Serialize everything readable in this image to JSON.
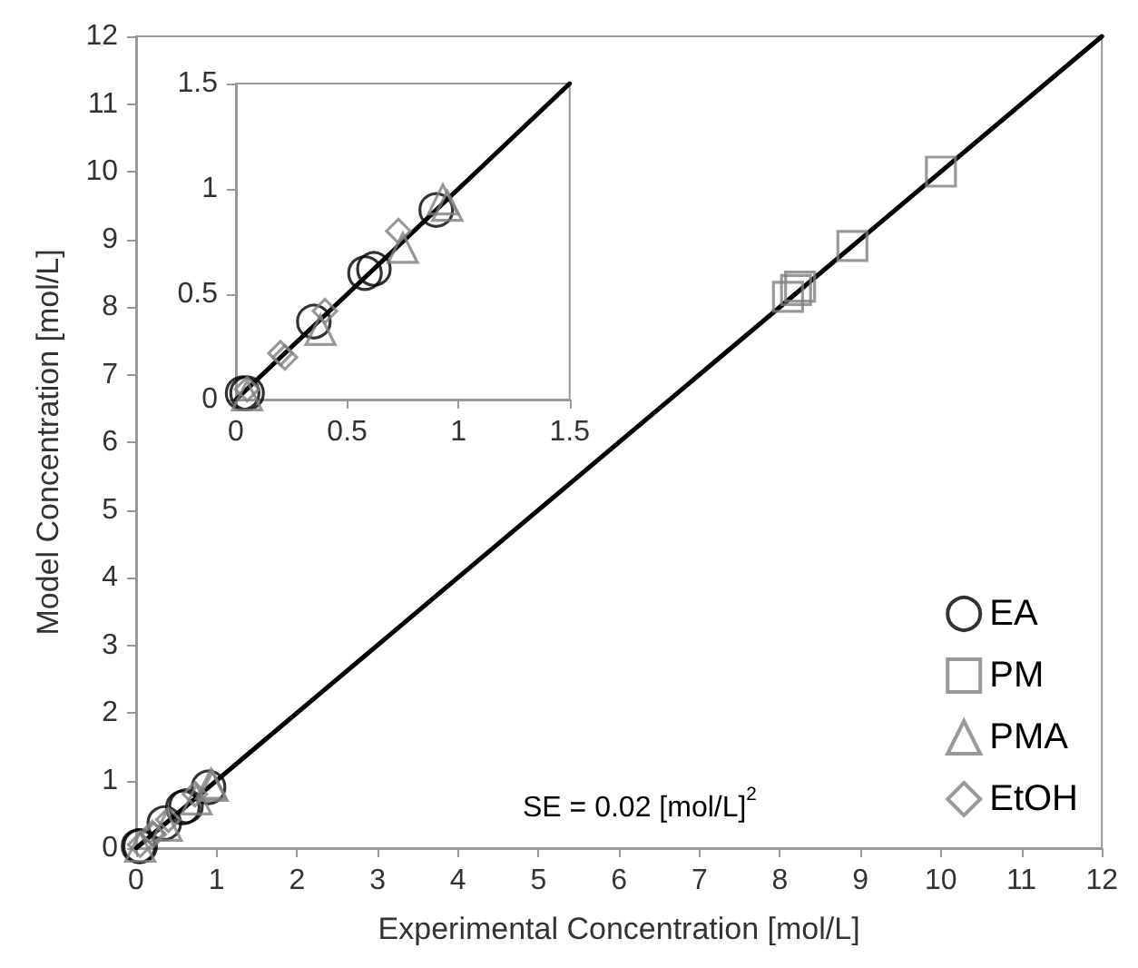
{
  "chart_data": [
    {
      "type": "scatter",
      "xlabel": "Experimental Concentration [mol/L]",
      "ylabel": "Model Concentration [mol/L]",
      "xlim": [
        0,
        12
      ],
      "ylim": [
        0,
        12
      ],
      "xticks": [
        0,
        1,
        2,
        3,
        4,
        5,
        6,
        7,
        8,
        9,
        10,
        11,
        12
      ],
      "yticks": [
        0,
        1,
        2,
        3,
        4,
        5,
        6,
        7,
        8,
        9,
        10,
        11,
        12
      ],
      "grid": false,
      "legend": "bottom right",
      "annotations": [
        "SE = 0.02 [mol/L]$^{2}$"
      ],
      "series": [
        {
          "name": "EA",
          "color": "#000000",
          "marker": "circle",
          "x": [
            0.03,
            0.05,
            0.35,
            0.58,
            0.62,
            0.9
          ],
          "values": [
            0.03,
            0.03,
            0.37,
            0.6,
            0.62,
            0.9
          ]
        },
        {
          "name": "PM",
          "color": "#7f7f7f",
          "marker": "square",
          "x": [
            8.1,
            8.2,
            8.25,
            8.9,
            10.0
          ],
          "values": [
            8.15,
            8.25,
            8.3,
            8.9,
            10.0
          ]
        },
        {
          "name": "PMA",
          "color": "#7f7f7f",
          "marker": "triangle",
          "x": [
            0.05,
            0.38,
            0.75,
            0.93,
            0.95
          ],
          "values": [
            0.02,
            0.33,
            0.72,
            0.95,
            0.92
          ]
        },
        {
          "name": "EtOH",
          "color": "#7f7f7f",
          "marker": "diamond",
          "x": [
            0.05,
            0.2,
            0.22,
            0.4,
            0.73
          ],
          "values": [
            0.05,
            0.22,
            0.2,
            0.42,
            0.8
          ]
        },
        {
          "type": "line",
          "color": "#000000",
          "marker": "none",
          "x": [
            0,
            12
          ],
          "values": [
            0,
            12
          ]
        }
      ]
    },
    {
      "type": "scatter",
      "xlim": [
        0,
        1.5
      ],
      "ylim": [
        0,
        1.5
      ],
      "xticks": [
        0,
        0.5,
        1,
        1.5
      ],
      "yticks": [
        0,
        0.5,
        1,
        1.5
      ],
      "grid": false,
      "series": [
        {
          "color": "#000000",
          "marker": "circle",
          "x": [
            0.03,
            0.05,
            0.35,
            0.58,
            0.62,
            0.9
          ],
          "values": [
            0.03,
            0.03,
            0.37,
            0.6,
            0.62,
            0.9
          ]
        },
        {
          "color": "#7f7f7f",
          "marker": "triangle",
          "x": [
            0.05,
            0.38,
            0.75,
            0.93,
            0.95
          ],
          "values": [
            0.02,
            0.33,
            0.72,
            0.95,
            0.92
          ]
        },
        {
          "color": "#7f7f7f",
          "marker": "diamond",
          "x": [
            0.05,
            0.2,
            0.22,
            0.4,
            0.73
          ],
          "values": [
            0.05,
            0.22,
            0.2,
            0.42,
            0.8
          ]
        },
        {
          "type": "line",
          "color": "#000000",
          "marker": "none",
          "x": [
            0,
            1.5
          ],
          "values": [
            0,
            1.5
          ]
        }
      ]
    }
  ]
}
